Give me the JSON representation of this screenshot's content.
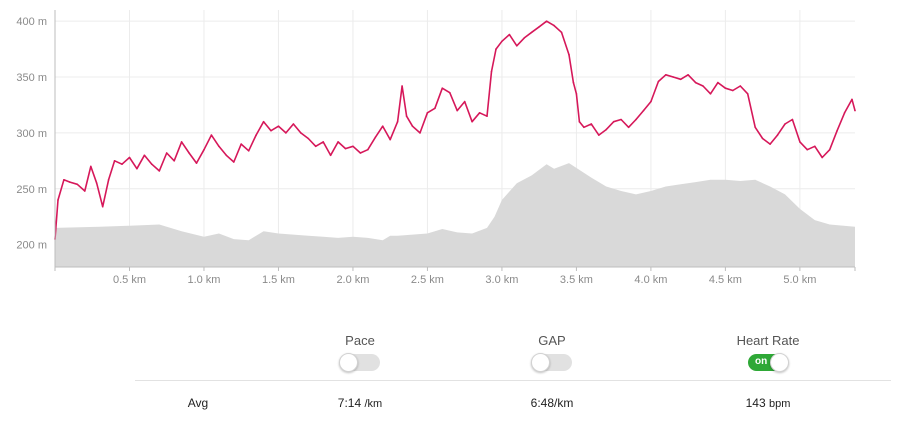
{
  "chart_data": {
    "type": "line",
    "x_labels": [
      "0.5 km",
      "1.0 km",
      "1.5 km",
      "2.0 km",
      "2.5 km",
      "3.0 km",
      "3.5 km",
      "4.0 km",
      "4.5 km",
      "5.0 km"
    ],
    "x_ticks": [
      0.5,
      1.0,
      1.5,
      2.0,
      2.5,
      3.0,
      3.5,
      4.0,
      4.5,
      5.0
    ],
    "xlim": [
      0,
      5.37
    ],
    "y_labels": [
      "200 m",
      "250 m",
      "300 m",
      "350 m",
      "400 m"
    ],
    "y_ticks": [
      200,
      250,
      300,
      350,
      400
    ],
    "ylim": [
      180,
      410
    ],
    "grid": true,
    "series": [
      {
        "color": "#d6185a",
        "style": "line",
        "x": [
          0,
          0.02,
          0.06,
          0.1,
          0.15,
          0.2,
          0.24,
          0.28,
          0.32,
          0.36,
          0.4,
          0.45,
          0.5,
          0.55,
          0.6,
          0.65,
          0.7,
          0.75,
          0.8,
          0.85,
          0.9,
          0.95,
          1.0,
          1.05,
          1.1,
          1.15,
          1.2,
          1.25,
          1.3,
          1.35,
          1.4,
          1.45,
          1.5,
          1.55,
          1.6,
          1.65,
          1.7,
          1.75,
          1.8,
          1.85,
          1.9,
          1.95,
          2.0,
          2.05,
          2.1,
          2.15,
          2.2,
          2.25,
          2.3,
          2.33,
          2.36,
          2.4,
          2.45,
          2.5,
          2.55,
          2.6,
          2.65,
          2.7,
          2.75,
          2.8,
          2.85,
          2.9,
          2.93,
          2.96,
          3.0,
          3.05,
          3.1,
          3.15,
          3.2,
          3.25,
          3.3,
          3.35,
          3.4,
          3.45,
          3.48,
          3.5,
          3.52,
          3.55,
          3.6,
          3.65,
          3.7,
          3.75,
          3.8,
          3.85,
          3.9,
          3.95,
          4.0,
          4.05,
          4.1,
          4.15,
          4.2,
          4.25,
          4.3,
          4.35,
          4.4,
          4.45,
          4.5,
          4.55,
          4.6,
          4.65,
          4.7,
          4.75,
          4.8,
          4.85,
          4.9,
          4.95,
          5.0,
          5.05,
          5.1,
          5.15,
          5.2,
          5.25,
          5.3,
          5.35,
          5.37
        ],
        "values": [
          205,
          240,
          258,
          256,
          254,
          248,
          270,
          255,
          234,
          258,
          275,
          272,
          278,
          268,
          280,
          272,
          266,
          282,
          275,
          292,
          282,
          273,
          285,
          298,
          288,
          280,
          274,
          290,
          284,
          298,
          310,
          302,
          306,
          300,
          308,
          300,
          295,
          288,
          292,
          280,
          292,
          286,
          288,
          282,
          285,
          296,
          306,
          294,
          310,
          342,
          315,
          306,
          300,
          318,
          322,
          340,
          336,
          320,
          328,
          310,
          318,
          315,
          355,
          375,
          382,
          388,
          378,
          385,
          390,
          395,
          400,
          396,
          390,
          370,
          345,
          335,
          310,
          305,
          308,
          298,
          303,
          310,
          312,
          305,
          312,
          320,
          328,
          346,
          352,
          350,
          348,
          352,
          345,
          342,
          335,
          345,
          340,
          338,
          342,
          335,
          305,
          295,
          290,
          298,
          308,
          312,
          292,
          285,
          288,
          278,
          285,
          302,
          318,
          330,
          320
        ]
      },
      {
        "color": "#d9d9d9",
        "style": "area",
        "x": [
          0,
          0.3,
          0.5,
          0.7,
          0.85,
          1.0,
          1.1,
          1.2,
          1.3,
          1.4,
          1.5,
          1.7,
          1.8,
          1.9,
          2.0,
          2.1,
          2.2,
          2.25,
          2.3,
          2.5,
          2.6,
          2.7,
          2.8,
          2.9,
          2.95,
          3.0,
          3.1,
          3.2,
          3.3,
          3.35,
          3.45,
          3.6,
          3.7,
          3.8,
          3.9,
          4.0,
          4.1,
          4.2,
          4.3,
          4.4,
          4.5,
          4.6,
          4.7,
          4.8,
          4.9,
          5.0,
          5.1,
          5.2,
          5.37
        ],
        "values": [
          215,
          216,
          217,
          218,
          212,
          207,
          210,
          205,
          204,
          212,
          210,
          208,
          207,
          206,
          207,
          206,
          204,
          208,
          208,
          210,
          214,
          211,
          210,
          215,
          225,
          240,
          255,
          262,
          272,
          268,
          273,
          260,
          252,
          248,
          245,
          248,
          252,
          254,
          256,
          258,
          258,
          257,
          258,
          252,
          245,
          232,
          222,
          218,
          216
        ]
      }
    ]
  },
  "toggles": {
    "pace": {
      "label": "Pace",
      "state": "off"
    },
    "gap": {
      "label": "GAP",
      "state": "off"
    },
    "heart_rate": {
      "label": "Heart Rate",
      "state": "on",
      "state_text": "on"
    }
  },
  "stats": {
    "row_label": "Avg",
    "pace_value": "7:14",
    "pace_unit": "/km",
    "gap_value": "6:48/km",
    "hr_value": "143",
    "hr_unit": "bpm"
  }
}
